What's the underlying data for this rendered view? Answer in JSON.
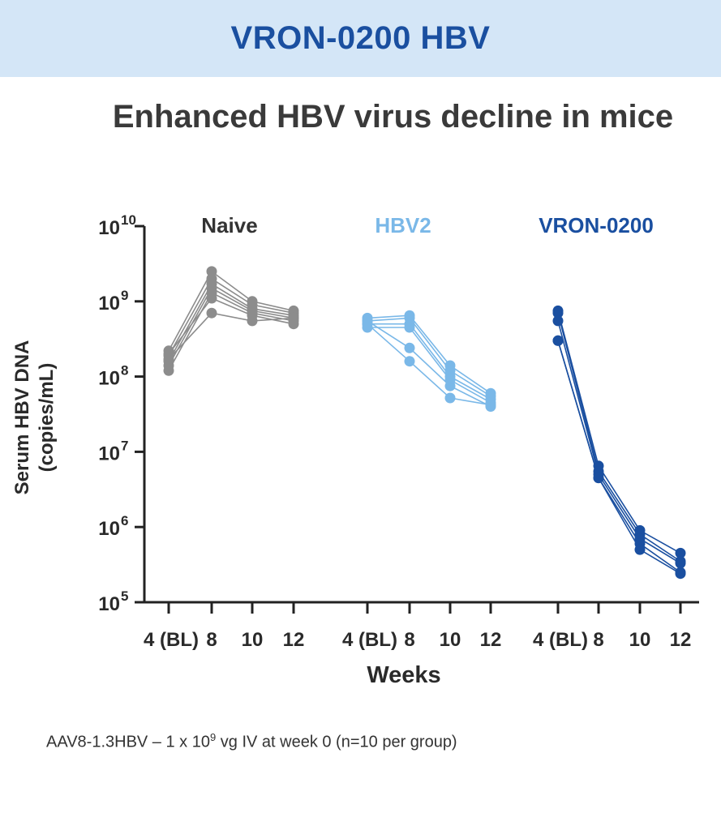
{
  "banner": {
    "title": "VRON-0200 HBV"
  },
  "chart_data": {
    "type": "line",
    "title": "Enhanced HBV virus decline in mice",
    "ylabel_line1": "Serum HBV DNA",
    "ylabel_line2": "(copies/mL)",
    "xlabel": "Weeks",
    "yscale": "log",
    "ylim": [
      100000,
      10000000000
    ],
    "ytick_base": "10",
    "yticks": [
      {
        "exp": "10",
        "value": 10000000000
      },
      {
        "exp": "9",
        "value": 1000000000
      },
      {
        "exp": "8",
        "value": 100000000
      },
      {
        "exp": "7",
        "value": 10000000
      },
      {
        "exp": "6",
        "value": 1000000
      },
      {
        "exp": "5",
        "value": 100000
      }
    ],
    "x_categories": [
      "4 (BL)",
      "8",
      "10",
      "12"
    ],
    "groups": [
      {
        "name": "Naive",
        "color": "#8c8c8c",
        "series": [
          [
            220000000,
            2500000000,
            1000000000,
            750000000
          ],
          [
            190000000,
            2000000000,
            900000000,
            700000000
          ],
          [
            160000000,
            1700000000,
            800000000,
            650000000
          ],
          [
            140000000,
            1500000000,
            750000000,
            600000000
          ],
          [
            120000000,
            1300000000,
            700000000,
            550000000
          ],
          [
            200000000,
            1100000000,
            650000000,
            500000000
          ],
          [
            170000000,
            700000000,
            550000000,
            600000000
          ]
        ]
      },
      {
        "name": "HBV2",
        "color": "#7ab8e8",
        "series": [
          [
            600000000,
            650000000,
            140000000,
            60000000
          ],
          [
            550000000,
            600000000,
            120000000,
            55000000
          ],
          [
            500000000,
            500000000,
            100000000,
            50000000
          ],
          [
            450000000,
            450000000,
            90000000,
            45000000
          ],
          [
            550000000,
            240000000,
            75000000,
            40000000
          ],
          [
            500000000,
            160000000,
            52000000,
            42000000
          ]
        ]
      },
      {
        "name": "VRON-0200",
        "color": "#1a4fa0",
        "series": [
          [
            750000000,
            6500000,
            900000,
            450000
          ],
          [
            700000000,
            5500000,
            800000,
            350000
          ],
          [
            550000000,
            5000000,
            700000,
            330000
          ],
          [
            300000000,
            4500000,
            600000,
            250000
          ],
          [
            300000000,
            4500000,
            500000,
            240000
          ]
        ]
      }
    ]
  },
  "footnote": {
    "prefix": "AAV8-1.3HBV – 1 x 10",
    "exp": "9",
    "suffix": " vg IV at week 0 (n=10 per group)"
  }
}
